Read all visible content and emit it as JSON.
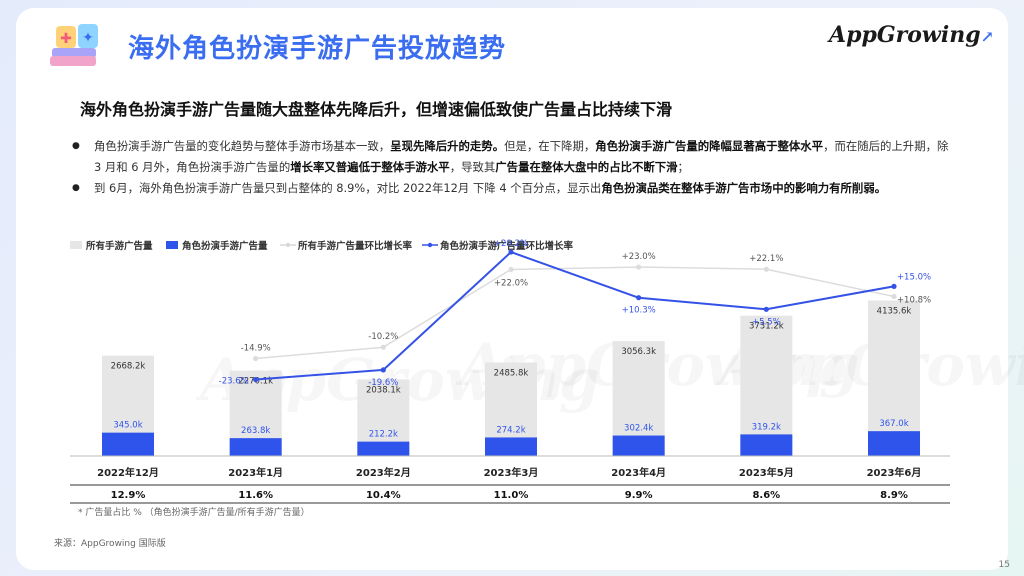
{
  "header": {
    "title": "海外角色扮演手游广告投放趋势",
    "logo": "AppGrowing",
    "colors": {
      "accent": "#3a6df0"
    }
  },
  "subtitle": "海外角色扮演手游广告量随大盘整体先降后升，但增速偏低致使广告量占比持续下滑",
  "bullets": [
    {
      "segments": [
        {
          "text": "角色扮演手游广告量的变化趋势与整体手游市场基本一致，",
          "bold": false
        },
        {
          "text": "呈现先降后升的走势。",
          "bold": true
        },
        {
          "text": "但是，在下降期，",
          "bold": false
        },
        {
          "text": "角色扮演手游广告量的降幅显著高于整体水平",
          "bold": true
        },
        {
          "text": "，而在随后的上升期，除 3 月和 6 月外，角色扮演手游广告量的",
          "bold": false
        },
        {
          "text": "增长率又普遍低于整体手游水平",
          "bold": true
        },
        {
          "text": "，导致其",
          "bold": false
        },
        {
          "text": "广告量在整体大盘中的占比不断下滑",
          "bold": true
        },
        {
          "text": "；",
          "bold": false
        }
      ]
    },
    {
      "segments": [
        {
          "text": "到 6月，海外角色扮演手游广告量只到占整体的 8.9%，对比 2022年12月 下降 4 个百分点，显示出",
          "bold": false
        },
        {
          "text": "角色扮演品类在整体手游广告市场中的影响力有所削弱。",
          "bold": true
        }
      ]
    }
  ],
  "chart_data": {
    "type": "bar",
    "legend": [
      {
        "name": "所有手游广告量",
        "color": "#e6e6e6",
        "kind": "bar"
      },
      {
        "name": "角色扮演手游广告量",
        "color": "#2f54eb",
        "kind": "bar"
      },
      {
        "name": "所有手游广告量环比增长率",
        "color": "#d9d9d9",
        "kind": "line"
      },
      {
        "name": "角色扮演手游广告量环比增长率",
        "color": "#3552e6",
        "kind": "line"
      }
    ],
    "categories": [
      "2022年12月",
      "2023年1月",
      "2023年2月",
      "2023年3月",
      "2023年4月",
      "2023年5月",
      "2023年6月"
    ],
    "series": [
      {
        "name": "所有手游广告量",
        "unit": "k",
        "values": [
          2668.2,
          2270.1,
          2038.1,
          2485.8,
          3056.3,
          3731.2,
          4135.6
        ],
        "labels": [
          "2668.2k",
          "2270.1k",
          "2038.1k",
          "2485.8k",
          "3056.3k",
          "3731.2k",
          "4135.6k"
        ]
      },
      {
        "name": "角色扮演手游广告量",
        "unit": "k",
        "values": [
          345.0,
          263.8,
          212.2,
          274.2,
          302.4,
          319.2,
          367.0
        ],
        "labels": [
          "345.0k",
          "263.8k",
          "212.2k",
          "274.2k",
          "302.4k",
          "319.2k",
          "367.0k"
        ]
      },
      {
        "name": "所有手游广告量环比增长率",
        "unit": "%",
        "values": [
          null,
          -14.9,
          -10.2,
          22.0,
          23.0,
          22.1,
          10.8
        ],
        "labels": [
          "",
          "-14.9%",
          "-10.2%",
          "+22.0%",
          "+23.0%",
          "+22.1%",
          "+10.8%"
        ]
      },
      {
        "name": "角色扮演手游广告量环比增长率",
        "unit": "%",
        "values": [
          null,
          -23.6,
          -19.6,
          29.2,
          10.3,
          5.5,
          15.0
        ],
        "labels": [
          "",
          "-23.6%",
          "-19.6%",
          "+29.2%",
          "+10.3%",
          "+5.5%",
          "+15.0%"
        ]
      }
    ],
    "share_row": [
      "12.9%",
      "11.6%",
      "10.4%",
      "11.0%",
      "9.9%",
      "8.6%",
      "8.9%"
    ],
    "share_note": "* 广告量占比 %  （角色扮演手游广告量/所有手游广告量）",
    "ylim_bar": [
      0,
      5000
    ],
    "ylim_line": [
      -30,
      40
    ],
    "watermark": "AppGrowing"
  },
  "footer": {
    "source": "来源：AppGrowing 国际版",
    "page": "15"
  }
}
